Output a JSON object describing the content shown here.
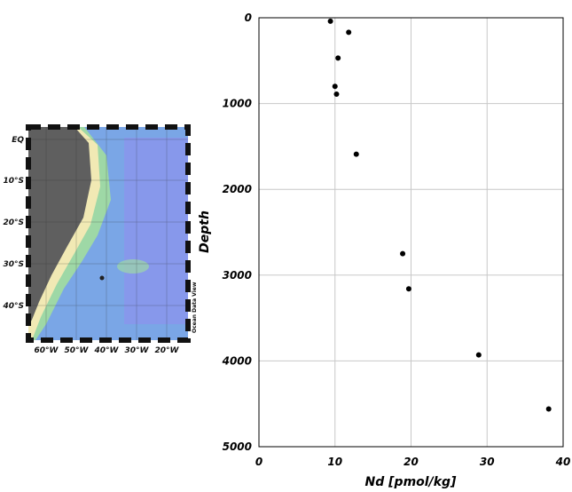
{
  "map": {
    "lat_labels": [
      "EQ",
      "10°S",
      "20°S",
      "30°S",
      "40°S"
    ],
    "lon_labels": [
      "60°W",
      "50°W",
      "40°W",
      "30°W",
      "20°W"
    ],
    "credit": "Ocean Data View",
    "colors": {
      "land": "#5f5f5f",
      "coast": "#f1e9b4",
      "shelf": "#9ed8a6",
      "ocean": "#7aa6e6",
      "ocean_deep": "#8f90ee",
      "station": "#202020"
    }
  },
  "chart_data": {
    "type": "scatter",
    "xlabel": "Nd [pmol/kg]",
    "ylabel": "Depth",
    "xlim": [
      0,
      40
    ],
    "ylim": [
      5000,
      0
    ],
    "y_inverted": true,
    "grid": true,
    "x_ticks": [
      "0",
      "10",
      "20",
      "30",
      "40"
    ],
    "y_ticks": [
      "0",
      "1000",
      "2000",
      "3000",
      "4000",
      "5000"
    ],
    "points": [
      {
        "x": 9.4,
        "y": 40
      },
      {
        "x": 11.8,
        "y": 170
      },
      {
        "x": 10.4,
        "y": 470
      },
      {
        "x": 10.0,
        "y": 800
      },
      {
        "x": 10.2,
        "y": 890
      },
      {
        "x": 12.8,
        "y": 1590
      },
      {
        "x": 18.9,
        "y": 2750
      },
      {
        "x": 19.7,
        "y": 3160
      },
      {
        "x": 28.9,
        "y": 3930
      },
      {
        "x": 38.1,
        "y": 4560
      }
    ]
  }
}
